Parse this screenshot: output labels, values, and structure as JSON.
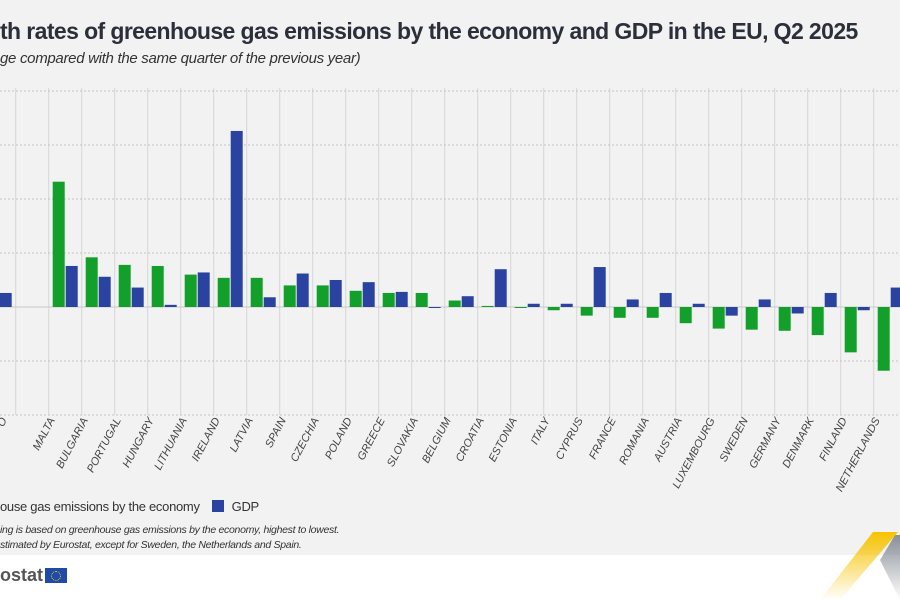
{
  "title": "th rates of greenhouse gas emissions by the economy and GDP in the EU, Q2 2025",
  "subtitle": "ge compared with the same quarter of the previous year)",
  "legend": {
    "ghg": "ouse gas emissions by the economy",
    "gdp": "GDP"
  },
  "notes": [
    "ing is based on greenhouse gas emissions by the economy, highest to lowest.",
    "stimated by Eurostat, except for Sweden, the Netherlands and Spain."
  ],
  "logo": "ostat",
  "colors": {
    "ghg": "#12a02a",
    "gdp": "#2a43a0",
    "grid": "#cfcfcf",
    "accent": "#f7c300"
  },
  "chart_data": {
    "type": "bar",
    "ylim": [
      -10,
      20
    ],
    "yticks": [
      -10,
      -5,
      0,
      5,
      10,
      15,
      20
    ],
    "grid": true,
    "legend_position": "bottom-left",
    "first_category_label": "O",
    "categories": [
      "MALTA",
      "BULGARIA",
      "PORTUGAL",
      "HUNGARY",
      "LITHUANIA",
      "IRELAND",
      "LATVIA",
      "SPAIN",
      "CZECHIA",
      "POLAND",
      "GREECE",
      "SLOVAKIA",
      "BELGIUM",
      "CROATIA",
      "ESTONIA",
      "ITALY",
      "CYPRUS",
      "FRANCE",
      "ROMANIA",
      "AUSTRIA",
      "LUXEMBOURG",
      "SWEDEN",
      "GERMANY",
      "DENMARK",
      "FINLAND",
      "NETHERLANDS"
    ],
    "first_group_gdp": 1.3,
    "series": [
      {
        "name": "ouse gas emissions by the economy",
        "values": [
          11.6,
          4.6,
          3.9,
          3.8,
          3.0,
          2.7,
          2.7,
          2.0,
          2.0,
          1.5,
          1.3,
          1.3,
          0.6,
          0.1,
          0.0,
          -0.3,
          -0.8,
          -1.0,
          -1.0,
          -1.5,
          -2.0,
          -2.1,
          -2.2,
          -2.6,
          -4.2,
          -5.9
        ]
      },
      {
        "name": "GDP",
        "values": [
          3.8,
          2.8,
          1.8,
          0.2,
          3.2,
          16.3,
          0.9,
          3.1,
          2.5,
          2.3,
          1.4,
          0.0,
          1.0,
          3.5,
          0.3,
          0.3,
          3.7,
          0.7,
          1.3,
          0.3,
          -0.8,
          0.7,
          -0.6,
          1.3,
          -0.3,
          1.8
        ]
      }
    ]
  }
}
